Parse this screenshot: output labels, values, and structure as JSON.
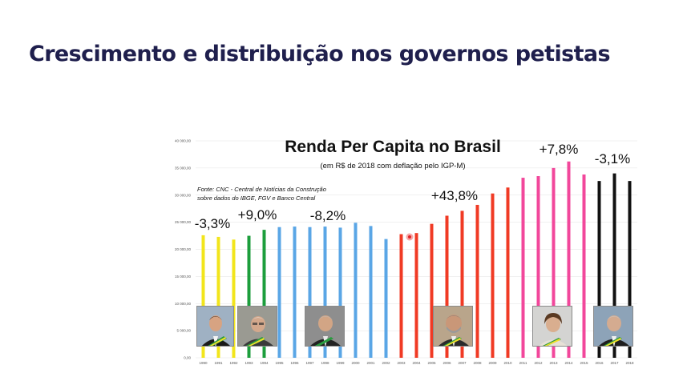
{
  "slide": {
    "title": "Crescimento e distribuição nos governos petistas"
  },
  "chart_data": {
    "type": "bar",
    "title": "Renda Per Capita no Brasil",
    "subtitle": "(em R$ de 2018 com deflação pelo IGP-M)",
    "source": [
      "Fonte: CNC - Central de Notícias da Construção",
      "sobre dados do IBGE, FGV e Banco Central"
    ],
    "ylim": [
      0,
      40000
    ],
    "yticks": [
      0,
      5000,
      10000,
      15000,
      20000,
      25000,
      30000,
      35000,
      40000
    ],
    "ytick_labels": [
      "0,00",
      "5 000,00",
      "10 000,00",
      "15 000,00",
      "20 000,00",
      "25 000,00",
      "30 000,00",
      "35 000,00",
      "40 000,00"
    ],
    "categories": [
      "1990",
      "1991",
      "1992",
      "1993",
      "1994",
      "1995",
      "1996",
      "1997",
      "1998",
      "1999",
      "2000",
      "2001",
      "2002",
      "2003",
      "2004",
      "2005",
      "2006",
      "2007",
      "2008",
      "2009",
      "2010",
      "2011",
      "2012",
      "2013",
      "2014",
      "2015",
      "2016",
      "2017",
      "2018"
    ],
    "values": [
      22600,
      22300,
      21800,
      22500,
      23600,
      24100,
      24200,
      24100,
      24200,
      24000,
      24900,
      24300,
      21900,
      22800,
      23000,
      24700,
      26200,
      27100,
      28200,
      30300,
      31400,
      33200,
      33500,
      35000,
      36200,
      33800,
      32600,
      34000,
      32600
    ],
    "colors": [
      "#f2e51b",
      "#f2e51b",
      "#f2e51b",
      "#1c9e3c",
      "#1c9e3c",
      "#5aa6e6",
      "#5aa6e6",
      "#5aa6e6",
      "#5aa6e6",
      "#5aa6e6",
      "#5aa6e6",
      "#5aa6e6",
      "#5aa6e6",
      "#f03a24",
      "#f03a24",
      "#f03a24",
      "#f03a24",
      "#f03a24",
      "#f03a24",
      "#f03a24",
      "#f03a24",
      "#f2479b",
      "#f2479b",
      "#f2479b",
      "#f2479b",
      "#f2479b",
      "#111111",
      "#111111",
      "#111111"
    ],
    "annotations": [
      "-3,3%",
      "+9,0%",
      "-8,2%",
      "+43,8%",
      "+7,8%",
      "-3,1%"
    ]
  }
}
